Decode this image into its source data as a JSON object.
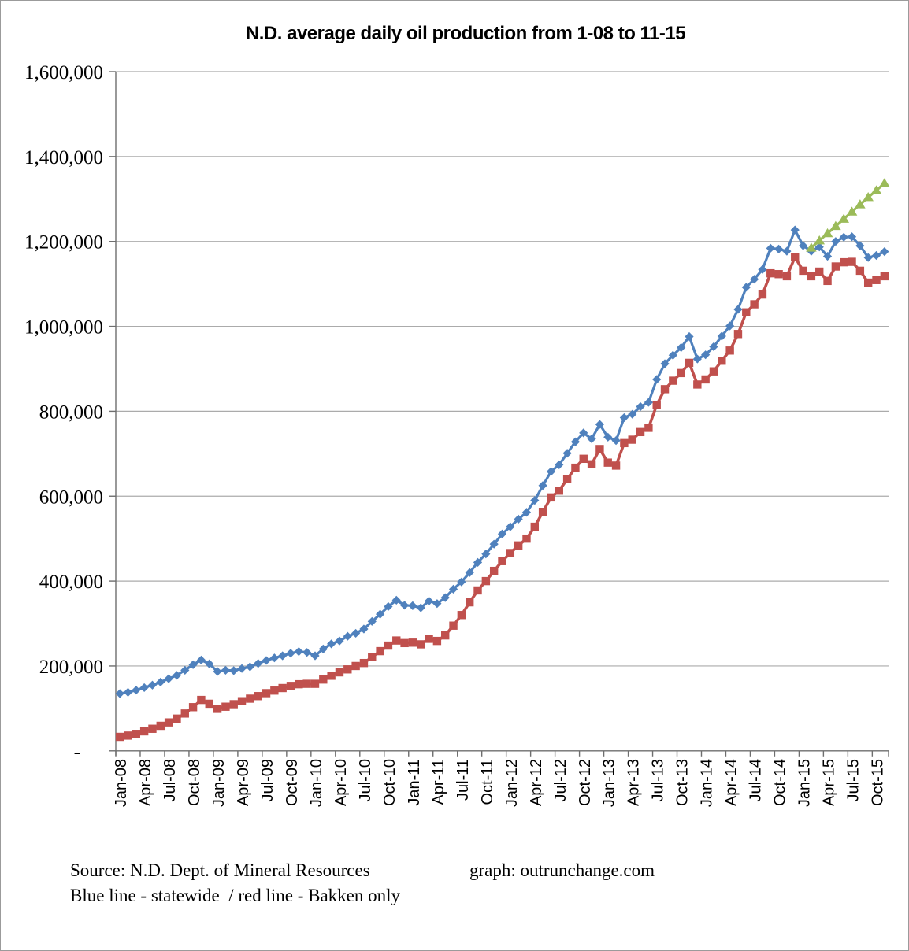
{
  "title": "N.D. average daily oil production from 1-08 to 11-15",
  "footer": {
    "source": "Source: N.D. Dept. of Mineral Resources",
    "graph_credit": "graph: outrunchange.com",
    "legend": "Blue line - statewide  / red line - Bakken only"
  },
  "y_axis": {
    "labels": [
      "1,600,000",
      "1,400,000",
      "1,200,000",
      "1,000,000",
      "800,000",
      "600,000",
      "400,000",
      "200,000",
      "-"
    ]
  },
  "x_axis": {
    "tick_labels": [
      "Jan-08",
      "Apr-08",
      "Jul-08",
      "Oct-08",
      "Jan-09",
      "Apr-09",
      "Jul-09",
      "Oct-09",
      "Jan-10",
      "Apr-10",
      "Jul-10",
      "Oct-10",
      "Jan-11",
      "Apr-11",
      "Jul-11",
      "Oct-11",
      "Jan-12",
      "Apr-12",
      "Jul-12",
      "Oct-12",
      "Jan-13",
      "Apr-13",
      "Jul-13",
      "Oct-13",
      "Jan-14",
      "Apr-14",
      "Jul-14",
      "Oct-14",
      "Jan-15",
      "Apr-15",
      "Jul-15",
      "Oct-15"
    ],
    "tick_step_months": 3
  },
  "colors": {
    "statewide": "#4F81BD",
    "bakken": "#C0504D",
    "projection": "#9BBB59",
    "gridline": "#ababab",
    "axis": "#6e6e6e",
    "text": "#000000"
  },
  "chart_data": {
    "type": "line",
    "title": "N.D. average daily oil production from 1-08 to 11-15",
    "xlabel": "",
    "ylabel": "",
    "ylim": [
      0,
      1600000
    ],
    "y_tick_interval": 200000,
    "grid": "horizontal",
    "legend_position": "none (described in footer text)",
    "months_total": 95,
    "x_start": "Jan-08",
    "x_end": "Nov-15",
    "series": [
      {
        "name": "statewide",
        "color": "#4F81BD",
        "marker": "diamond",
        "start_month_index": 0,
        "values": [
          135000,
          138000,
          143000,
          149000,
          155000,
          162000,
          170000,
          178000,
          190000,
          203000,
          214000,
          205000,
          187000,
          190000,
          189000,
          194000,
          198000,
          206000,
          213000,
          219000,
          224000,
          230000,
          234000,
          232000,
          224000,
          240000,
          252000,
          259000,
          270000,
          277000,
          287000,
          305000,
          322000,
          340000,
          355000,
          343000,
          342000,
          337000,
          353000,
          347000,
          361000,
          381000,
          398000,
          420000,
          444000,
          464000,
          487000,
          511000,
          528000,
          546000,
          562000,
          590000,
          625000,
          658000,
          674000,
          701000,
          728000,
          749000,
          735000,
          769000,
          739000,
          731000,
          785000,
          793000,
          811000,
          821000,
          875000,
          912000,
          932000,
          950000,
          976000,
          923000,
          933000,
          952000,
          977000,
          1001000,
          1040000,
          1092000,
          1111000,
          1134000,
          1184000,
          1182000,
          1177000,
          1227000,
          1190000,
          1177000,
          1187000,
          1165000,
          1200000,
          1210000,
          1211000,
          1190000,
          1162000,
          1167000,
          1176000
        ]
      },
      {
        "name": "Bakken only",
        "color": "#C0504D",
        "marker": "square",
        "start_month_index": 0,
        "values": [
          33000,
          36000,
          40000,
          46000,
          52000,
          59000,
          67000,
          76000,
          88000,
          103000,
          120000,
          111000,
          99000,
          104000,
          110000,
          117000,
          123000,
          129000,
          136000,
          142000,
          148000,
          153000,
          157000,
          158000,
          158000,
          168000,
          177000,
          185000,
          192000,
          200000,
          207000,
          221000,
          235000,
          248000,
          260000,
          254000,
          255000,
          251000,
          264000,
          259000,
          272000,
          295000,
          320000,
          350000,
          378000,
          400000,
          424000,
          447000,
          466000,
          484000,
          500000,
          528000,
          563000,
          597000,
          613000,
          640000,
          667000,
          688000,
          675000,
          711000,
          679000,
          672000,
          725000,
          733000,
          751000,
          761000,
          815000,
          852000,
          872000,
          890000,
          914000,
          863000,
          875000,
          894000,
          919000,
          943000,
          982000,
          1033000,
          1052000,
          1075000,
          1125000,
          1123000,
          1118000,
          1163000,
          1131000,
          1118000,
          1129000,
          1107000,
          1141000,
          1151000,
          1152000,
          1131000,
          1103000,
          1109000,
          1118000
        ]
      },
      {
        "name": "projection trend",
        "color": "#9BBB59",
        "marker": "triangle",
        "start_month_index": 85,
        "values": [
          1185000,
          1202000,
          1219000,
          1236000,
          1253000,
          1270000,
          1287000,
          1304000,
          1320000,
          1337000
        ]
      }
    ]
  }
}
